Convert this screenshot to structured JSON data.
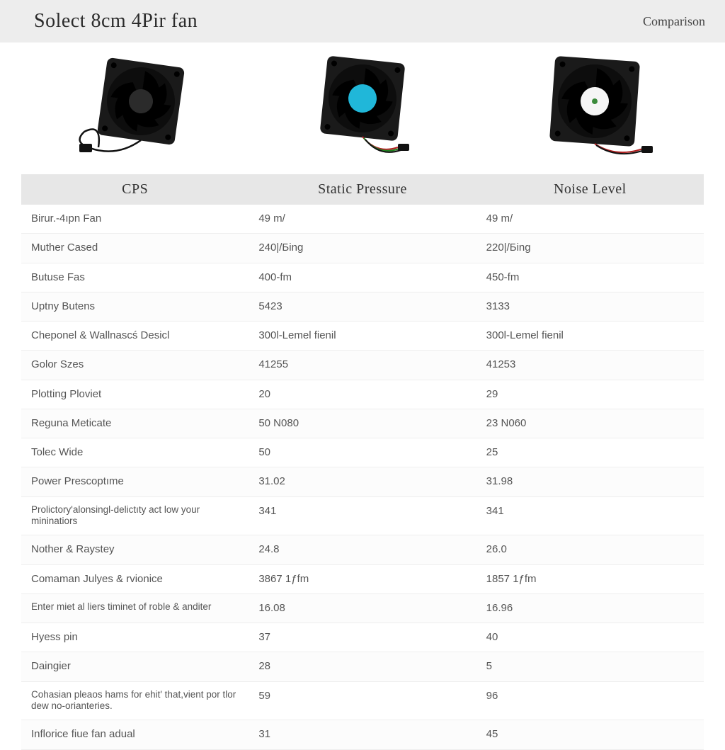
{
  "header": {
    "title": "Solect 8cm 4Pir fan",
    "subtitle": "Comparison"
  },
  "table": {
    "columns": [
      "CPS",
      "Static Pressure",
      "Noise Level"
    ],
    "col_widths_pct": [
      34,
      33,
      33
    ],
    "header_bg": "#e7e7e7",
    "header_fontsize": 20,
    "cell_fontsize": 15,
    "small_cell_fontsize": 13.5,
    "border_color": "#eeeeee",
    "text_color": "#555555",
    "rows": [
      {
        "cells": [
          "Birur.-4ıpn Fan",
          "49 m/",
          "49 m/"
        ],
        "small": false
      },
      {
        "cells": [
          "Muther Cased",
          "240|/Бing",
          "220|/Бing"
        ],
        "small": false
      },
      {
        "cells": [
          "Butuse Fas",
          "400-fm",
          "450-fm"
        ],
        "small": false
      },
      {
        "cells": [
          "Uptny Butens",
          "5423",
          "3133"
        ],
        "small": false
      },
      {
        "cells": [
          "Cheponel & Wallnascś Desicl",
          "300l-Lemel fienil",
          "300l-Lemel fienil"
        ],
        "small": false
      },
      {
        "cells": [
          "Golor Szes",
          "41255",
          "41253"
        ],
        "small": false
      },
      {
        "cells": [
          "Plotting Ploviet",
          "20",
          "29"
        ],
        "small": false
      },
      {
        "cells": [
          "Reguna Meticate",
          "50 N080",
          "23 N060"
        ],
        "small": false
      },
      {
        "cells": [
          "Tolec Wide",
          "50",
          "25"
        ],
        "small": false
      },
      {
        "cells": [
          "Power Prescoptıme",
          "31.02",
          "31.98"
        ],
        "small": false
      },
      {
        "cells": [
          "Prolictory'alonsingl-delictıty act low your mininatiors",
          "341",
          "341"
        ],
        "small": true
      },
      {
        "cells": [
          "Nother & Raystey",
          "24.8",
          "26.0"
        ],
        "small": false
      },
      {
        "cells": [
          "Comaman Julyes & rvionice",
          "3867 1ƒfm",
          "1857 1ƒfm"
        ],
        "small": false
      },
      {
        "cells": [
          "Enter miet al liers timinet of roble & anditer",
          "16.08",
          "16.96"
        ],
        "small": true
      },
      {
        "cells": [
          "Hyess pin",
          "37",
          "40"
        ],
        "small": false
      },
      {
        "cells": [
          "Daingier",
          "28",
          "5"
        ],
        "small": false
      },
      {
        "cells": [
          "Cohasian pleaos hams for ehit' that,vient por tlor dew no-orianteries.",
          "59",
          "96"
        ],
        "small": true
      },
      {
        "cells": [
          "Inflorice fiue fan adual",
          "31",
          "45"
        ],
        "small": false
      }
    ]
  },
  "images": {
    "fan1": {
      "body_color": "#1a1a1a",
      "blade_color": "#0a0a0a",
      "accent_color": "#2b2b2b",
      "cable_colors": [
        "#111111",
        "#111111"
      ]
    },
    "fan2": {
      "body_color": "#1a1a1a",
      "blade_color": "#0a0a0a",
      "accent_color": "#20b7d9",
      "cable_colors": [
        "#b02020",
        "#208020",
        "#111111"
      ]
    },
    "fan3": {
      "body_color": "#1a1a1a",
      "blade_color": "#0a0a0a",
      "accent_color": "#ffffff",
      "cable_colors": [
        "#b02020",
        "#111111"
      ]
    }
  },
  "styling": {
    "page_bg": "#ffffff",
    "header_bg": "#ededed",
    "title_fontsize": 28,
    "title_color": "#2b2b2b",
    "subtitle_fontsize": 18,
    "subtitle_color": "#444444",
    "font_serif": "Georgia",
    "font_sans": "Segoe UI, Arial"
  }
}
